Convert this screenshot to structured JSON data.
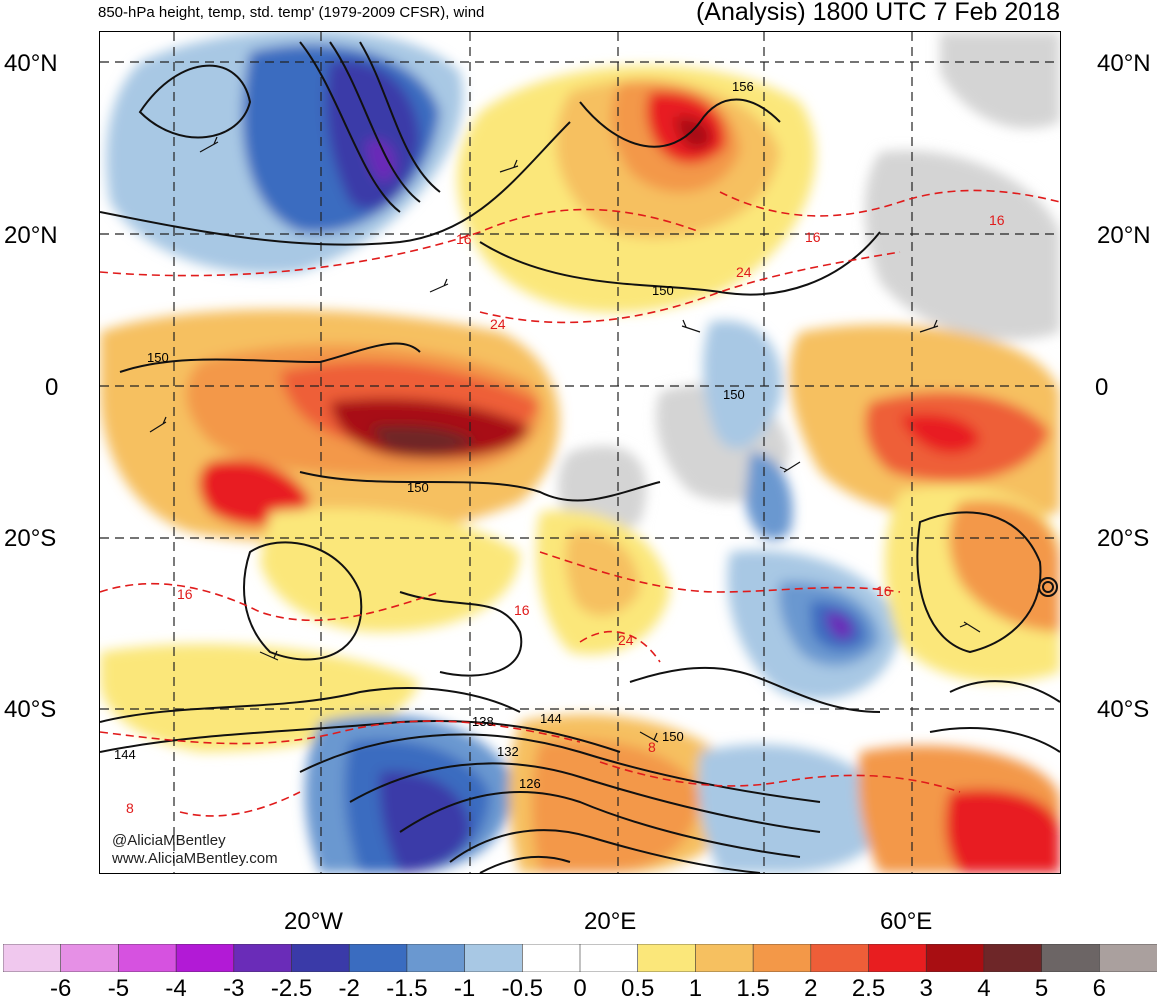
{
  "header": {
    "title_left": "850-hPa height, temp, std. temp' (1979-2009 CFSR), wind",
    "title_right": "(Analysis) 1800 UTC 7 Feb 2018"
  },
  "lat_labels_left": [
    "40°N",
    "20°N",
    "0",
    "20°S",
    "40°S"
  ],
  "lat_labels_right": [
    "40°N",
    "20°N",
    "0",
    "20°S",
    "40°S"
  ],
  "lon_labels": [
    "20°W",
    "20°E",
    "60°E"
  ],
  "height_contour_labels": [
    "156",
    "150",
    "150",
    "150",
    "150",
    "150",
    "144",
    "144",
    "138",
    "132",
    "126"
  ],
  "temp_contour_labels": [
    "16",
    "24",
    "24",
    "24",
    "16",
    "16",
    "16",
    "16",
    "16",
    "8",
    "8"
  ],
  "credits": [
    "@AliciaMBentley",
    "www.AliciaMBentley.com"
  ],
  "colorbar": {
    "labels": [
      "-6",
      "-5",
      "-4",
      "-3",
      "-2.5",
      "-2",
      "-1.5",
      "-1",
      "-0.5",
      "0",
      "0.5",
      "1",
      "1.5",
      "2",
      "2.5",
      "3",
      "4",
      "5",
      "6"
    ],
    "colors": [
      "#f0c8ee",
      "#e690e6",
      "#d652e0",
      "#b21ad6",
      "#6a2cb8",
      "#3a3aa8",
      "#3a6cc0",
      "#6a98d0",
      "#a8c8e4",
      "#ffffff",
      "#ffffff",
      "#fbe77a",
      "#f6c060",
      "#f39848",
      "#ee5e38",
      "#e81e20",
      "#a80e12",
      "#6e2628",
      "#6c6565",
      "#aaa09e"
    ]
  }
}
